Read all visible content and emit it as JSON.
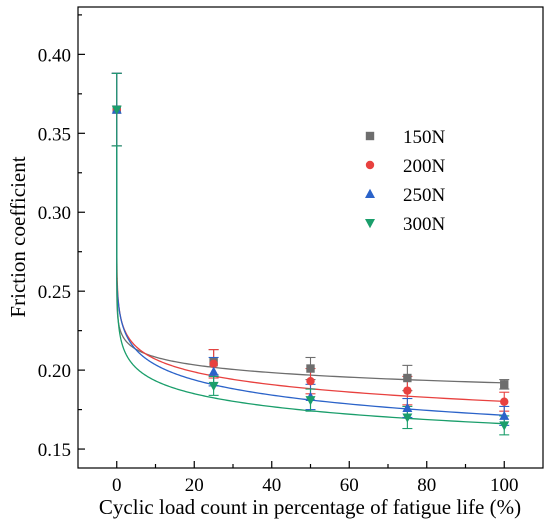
{
  "chart_data": {
    "type": "scatter",
    "xlabel": "Cyclic load count in percentage of fatigue life (%)",
    "ylabel": "Friction coefficient",
    "xlim": [
      -10,
      110
    ],
    "ylim": [
      0.138,
      0.43
    ],
    "x_ticks": [
      0,
      20,
      40,
      60,
      80,
      100
    ],
    "x_tick_labels": [
      "0",
      "20",
      "40",
      "60",
      "80",
      "100"
    ],
    "y_ticks": [
      0.15,
      0.2,
      0.25,
      0.3,
      0.35,
      0.4
    ],
    "y_tick_labels": [
      "0.15",
      "0.20",
      "0.25",
      "0.30",
      "0.35",
      "0.40"
    ],
    "grid": false,
    "legend_position": "right",
    "x": [
      0,
      25,
      50,
      75,
      100
    ],
    "series": [
      {
        "name": "150N",
        "color": "#6e6e6e",
        "marker": "square",
        "values": [
          0.365,
          0.205,
          0.201,
          0.195,
          0.191
        ],
        "errors": [
          0.023,
          0.008,
          0.007,
          0.008,
          0.003
        ],
        "fit": {
          "a": 0.2246,
          "b": -0.0071,
          "c": 0.01
        }
      },
      {
        "name": "200N",
        "color": "#e8413f",
        "marker": "circle",
        "values": [
          0.365,
          0.204,
          0.193,
          0.187,
          0.18
        ],
        "errors": [
          0.023,
          0.009,
          0.008,
          0.009,
          0.006
        ],
        "fit": {
          "a": 0.2336,
          "b": -0.0116,
          "c": 0.01
        }
      },
      {
        "name": "250N",
        "color": "#2b63c9",
        "marker": "triangle-up",
        "values": [
          0.365,
          0.199,
          0.183,
          0.176,
          0.171
        ],
        "errors": [
          0.023,
          0.009,
          0.008,
          0.006,
          0.006
        ],
        "fit": {
          "a": 0.2359,
          "b": -0.014,
          "c": 0.2
        }
      },
      {
        "name": "300N",
        "color": "#1a9e6b",
        "marker": "triangle-down",
        "values": [
          0.365,
          0.19,
          0.181,
          0.17,
          0.165
        ],
        "errors": [
          0.023,
          0.006,
          0.007,
          0.007,
          0.006
        ],
        "fit": {
          "a": 0.2204,
          "b": -0.0118,
          "c": 0.01
        }
      }
    ]
  }
}
